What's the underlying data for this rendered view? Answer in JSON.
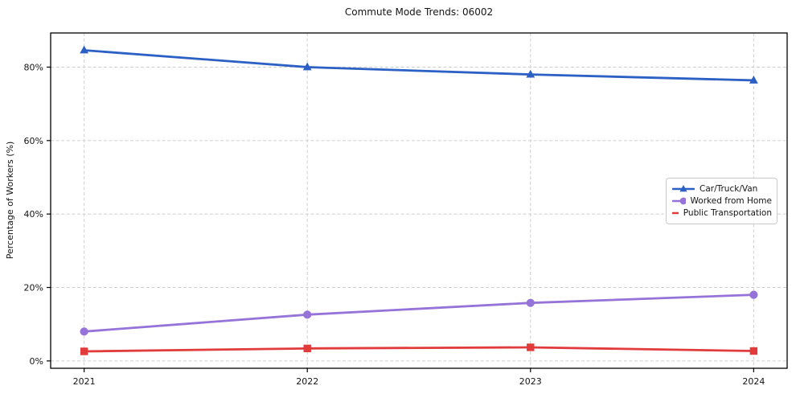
{
  "figure": {
    "title": "Commute Mode Trends: 06002",
    "ylabel": "Percentage of Workers (%)"
  },
  "chart_data": {
    "type": "line",
    "title": "Commute Mode Trends: 06002",
    "xlabel": "",
    "ylabel": "Percentage of Workers (%)",
    "x": [
      2021,
      2022,
      2023,
      2024
    ],
    "xlim": [
      2020.85,
      2024.15
    ],
    "ylim": [
      -2,
      89.3
    ],
    "grid": true,
    "grid_style": "dashed",
    "legend_position": "center-right",
    "xticks": [
      {
        "value": 2021,
        "label": "2021"
      },
      {
        "value": 2022,
        "label": "2022"
      },
      {
        "value": 2023,
        "label": "2023"
      },
      {
        "value": 2024,
        "label": "2024"
      }
    ],
    "yticks": [
      {
        "value": 0,
        "label": "0%"
      },
      {
        "value": 20,
        "label": "20%"
      },
      {
        "value": 40,
        "label": "40%"
      },
      {
        "value": 60,
        "label": "60%"
      },
      {
        "value": 80,
        "label": "80%"
      }
    ],
    "series": [
      {
        "name": "Car/Truck/Van",
        "color": "#2c60c4",
        "marker": "triangle",
        "values": [
          84.6,
          80.0,
          78.0,
          76.4
        ]
      },
      {
        "name": "Worked from Home",
        "color": "#9673d8",
        "marker": "circle",
        "values": [
          8.0,
          12.6,
          15.8,
          18.0
        ]
      },
      {
        "name": "Public Transportation",
        "color": "#e13b3b",
        "marker": "square",
        "values": [
          2.6,
          3.4,
          3.7,
          2.7
        ]
      }
    ]
  }
}
